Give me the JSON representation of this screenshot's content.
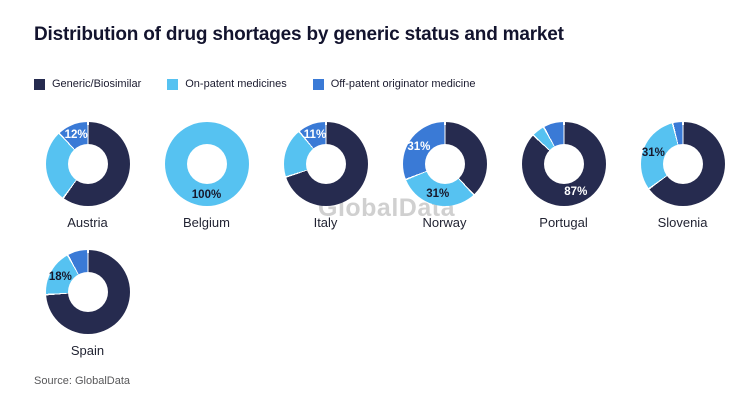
{
  "title": "Distribution of drug shortages by generic status and market",
  "watermark": "GlobalData",
  "source": "Source: GlobalData",
  "colors": {
    "generic": "#262B4F",
    "on_patent": "#56C2F1",
    "off_patent": "#3A7AD6",
    "label_light": "#ffffff",
    "label_dark": "#17182b"
  },
  "legend": [
    {
      "label": "Generic/Biosimilar",
      "color": "#262B4F"
    },
    {
      "label": "On-patent medicines",
      "color": "#56C2F1"
    },
    {
      "label": "Off-patent originator medicine",
      "color": "#3A7AD6"
    }
  ],
  "chart_data": {
    "type": "pie",
    "subtype": "donut-small-multiples",
    "title": "Distribution of drug shortages by generic status and market",
    "series_names": [
      "Generic/Biosimilar",
      "On-patent medicines",
      "Off-patent originator medicine"
    ],
    "legend_position": "top-left",
    "charts": [
      {
        "country": "Austria",
        "values": [
          60,
          28,
          12
        ],
        "slice_labels": [
          null,
          null,
          "12%"
        ],
        "label_styles": [
          null,
          null,
          "light"
        ]
      },
      {
        "country": "Belgium",
        "values": [
          0,
          100,
          0
        ],
        "slice_labels": [
          null,
          "100%",
          null
        ],
        "label_styles": [
          null,
          "dark",
          null
        ]
      },
      {
        "country": "Italy",
        "values": [
          70,
          19,
          11
        ],
        "slice_labels": [
          null,
          null,
          "11%"
        ],
        "label_styles": [
          null,
          null,
          "light"
        ]
      },
      {
        "country": "Norway",
        "values": [
          38,
          31,
          31
        ],
        "slice_labels": [
          null,
          "31%",
          "31%"
        ],
        "label_styles": [
          null,
          "dark",
          "light"
        ]
      },
      {
        "country": "Portugal",
        "values": [
          87,
          5,
          8
        ],
        "slice_labels": [
          "87%",
          null,
          null
        ],
        "label_styles": [
          "light",
          null,
          null
        ]
      },
      {
        "country": "Slovenia",
        "values": [
          65,
          31,
          4
        ],
        "slice_labels": [
          null,
          "31%",
          null
        ],
        "label_styles": [
          null,
          "dark",
          null
        ]
      },
      {
        "country": "Spain",
        "values": [
          74,
          18,
          8
        ],
        "slice_labels": [
          null,
          "18%",
          null
        ],
        "label_styles": [
          null,
          "dark",
          null
        ]
      }
    ]
  }
}
